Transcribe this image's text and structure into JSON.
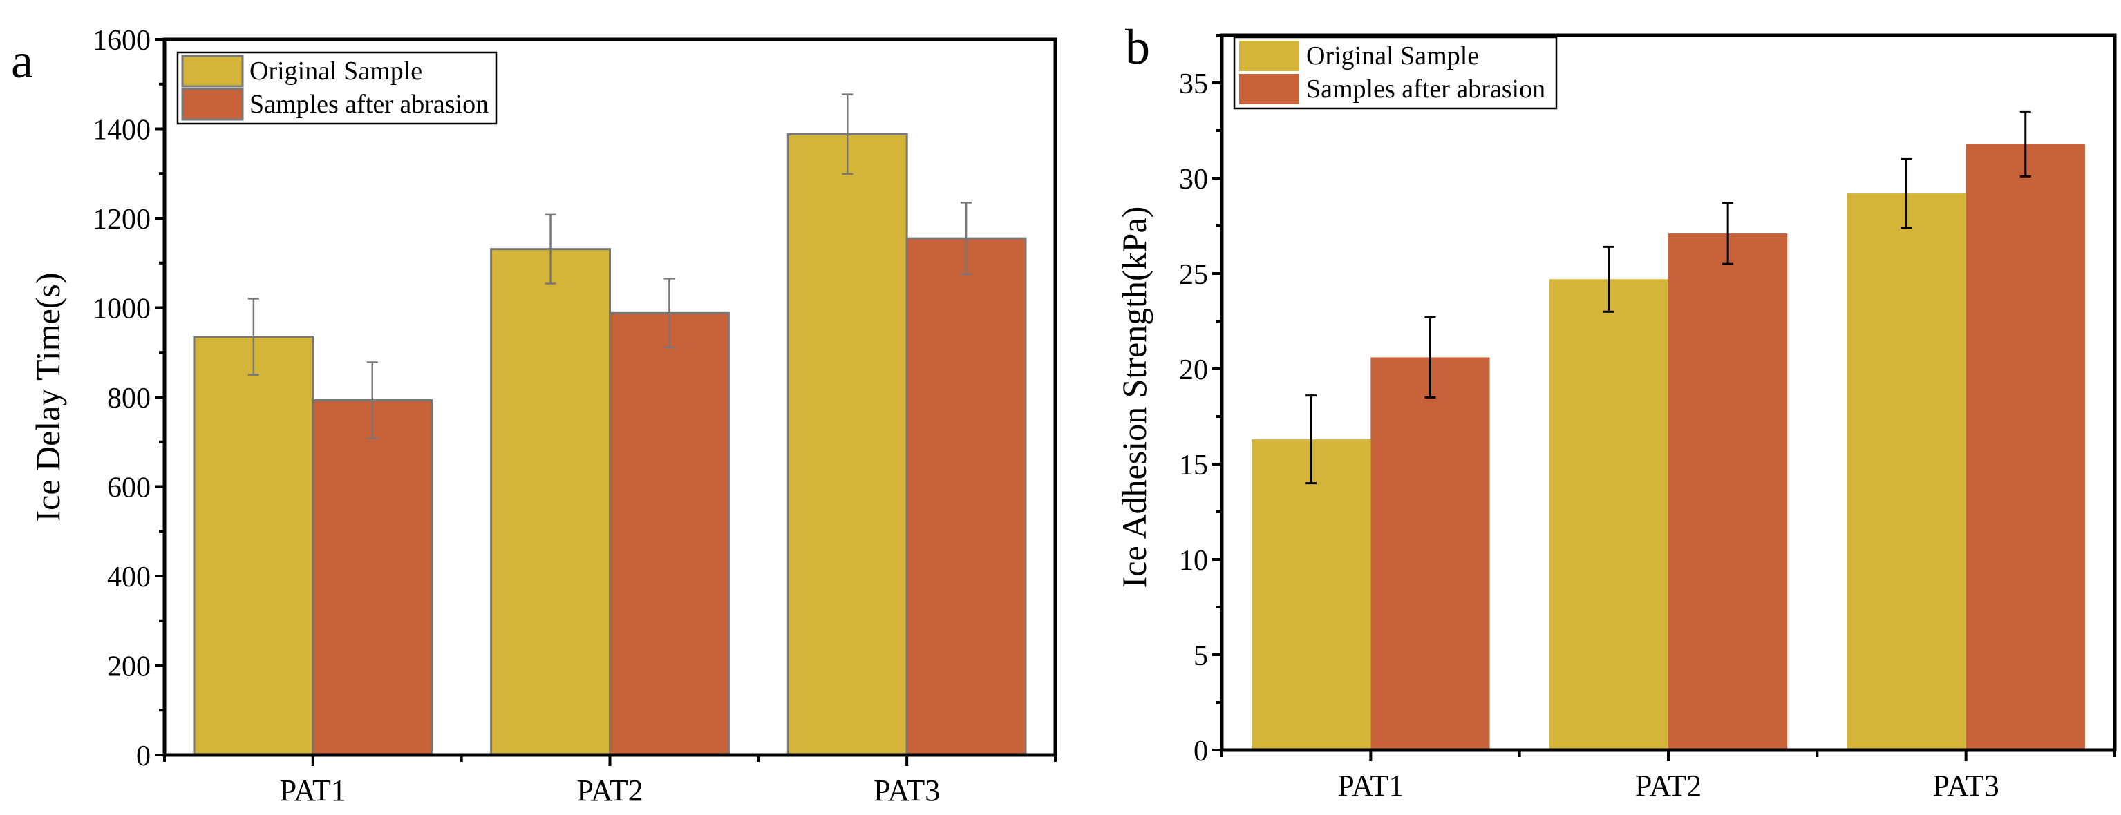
{
  "colors": {
    "original": "#D5B43A",
    "abraded": "#C8623B",
    "outline_a": "#777777",
    "err_a": "#777777",
    "err_b": "#000000"
  },
  "chart_data": [
    {
      "type": "bar",
      "panel_label": "a",
      "title": "",
      "xlabel": "",
      "ylabel": "Ice Delay Time(s)",
      "ylim": [
        0,
        1600
      ],
      "yticks": [
        0,
        200,
        400,
        600,
        800,
        1000,
        1200,
        1400,
        1600
      ],
      "categories": [
        "PAT1",
        "PAT2",
        "PAT3"
      ],
      "legend_position": "top-left",
      "series": [
        {
          "name": "Original Sample",
          "values": [
            935,
            1131,
            1388
          ],
          "errors": [
            85,
            77,
            89
          ]
        },
        {
          "name": "Samples after abrasion",
          "values": [
            793,
            988,
            1155
          ],
          "errors": [
            85,
            77,
            80
          ]
        }
      ]
    },
    {
      "type": "bar",
      "panel_label": "b",
      "title": "",
      "xlabel": "",
      "ylabel": "Ice Adhesion Strength(kPa)",
      "ylim": [
        0,
        37.5
      ],
      "yticks": [
        0,
        5,
        10,
        15,
        20,
        25,
        30,
        35
      ],
      "categories": [
        "PAT1",
        "PAT2",
        "PAT3"
      ],
      "legend_position": "top-left",
      "series": [
        {
          "name": "Original Sample",
          "values": [
            16.3,
            24.7,
            29.2
          ],
          "errors": [
            2.3,
            1.7,
            1.8
          ]
        },
        {
          "name": "Samples after abrasion",
          "values": [
            20.6,
            27.1,
            31.8
          ],
          "errors": [
            2.1,
            1.6,
            1.7
          ]
        }
      ]
    }
  ]
}
